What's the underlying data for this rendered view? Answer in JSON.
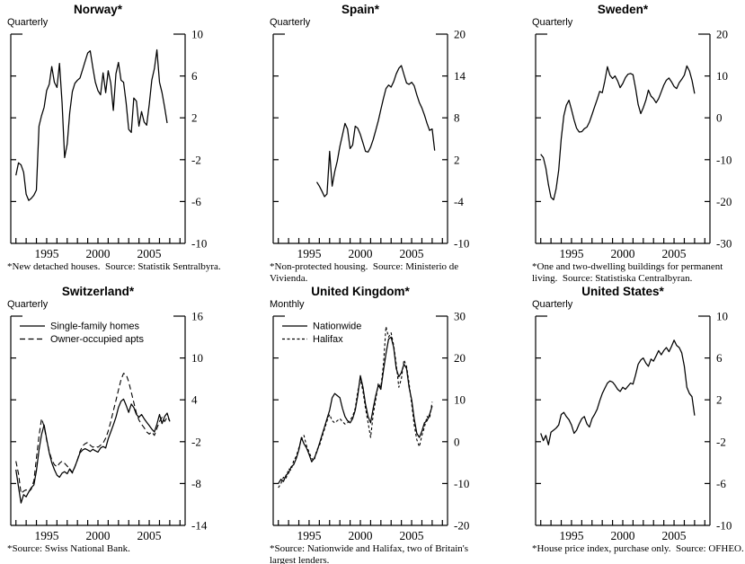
{
  "style": {
    "background": "#ffffff",
    "line_color": "#000000",
    "text_color": "#000000"
  },
  "chart_data": [
    {
      "type": "line",
      "title": "Norway*",
      "frequency_label": "Quarterly",
      "footnote": "*New detached houses.  Source: Statistik Sentralbyra.",
      "ylim": [
        -10,
        10
      ],
      "yticks": [
        10,
        6,
        2,
        -2,
        -6,
        -10
      ],
      "xlim": [
        1991.5,
        2008.5
      ],
      "year_ticks": [
        1992,
        2008
      ],
      "xtick_labels": [
        "1995",
        "2000",
        "2005"
      ],
      "legend": null,
      "series": [
        {
          "name": "New detached houses",
          "line_style": "solid",
          "x_start": 1992.0,
          "x_step": 0.25,
          "values": [
            -3.5,
            -2.3,
            -2.5,
            -3.2,
            -5.3,
            -5.9,
            -5.7,
            -5.4,
            -4.9,
            1.2,
            2.2,
            3.0,
            4.6,
            5.2,
            6.9,
            5.4,
            4.9,
            7.2,
            3.4,
            -1.8,
            -0.5,
            2.5,
            4.5,
            5.3,
            5.6,
            5.8,
            6.6,
            7.4,
            8.2,
            8.4,
            6.8,
            5.4,
            4.6,
            4.2,
            6.3,
            4.4,
            6.5,
            5.3,
            2.7,
            6.2,
            7.3,
            5.6,
            5.4,
            3.4,
            0.9,
            0.6,
            3.9,
            3.6,
            1.2,
            2.6,
            1.6,
            1.3,
            3.3,
            5.6,
            6.7,
            8.5,
            5.4,
            4.4,
            3.0,
            1.5
          ]
        }
      ]
    },
    {
      "type": "line",
      "title": "Spain*",
      "frequency_label": "Quarterly",
      "footnote": "*Non-protected housing.  Source: Ministerio de\nVivienda.",
      "ylim": [
        -10,
        20
      ],
      "yticks": [
        20,
        14,
        8,
        2,
        -4,
        -10
      ],
      "xlim": [
        1991.5,
        2008.5
      ],
      "year_ticks": [
        1992,
        2008
      ],
      "xtick_labels": [
        "1995",
        "2000",
        "2005"
      ],
      "legend": null,
      "series": [
        {
          "name": "Non-protected housing",
          "line_style": "solid",
          "x_start": 1995.75,
          "x_step": 0.25,
          "values": [
            -1.2,
            -1.8,
            -2.5,
            -3.3,
            -2.9,
            3.2,
            -1.8,
            0.3,
            1.8,
            3.9,
            5.5,
            7.2,
            6.4,
            3.6,
            4.1,
            6.8,
            6.5,
            5.6,
            4.4,
            3.2,
            3.1,
            3.8,
            4.9,
            6.2,
            7.6,
            9.2,
            10.8,
            12.2,
            12.7,
            12.4,
            13.2,
            14.3,
            15.1,
            15.5,
            14.2,
            13.0,
            12.8,
            13.1,
            12.6,
            11.3,
            10.2,
            9.4,
            8.4,
            7.2,
            6.2,
            6.4,
            3.3
          ]
        }
      ]
    },
    {
      "type": "line",
      "title": "Sweden*",
      "frequency_label": "Quarterly",
      "footnote": "*One and two-dwelling buildings for permanent\nliving.  Source: Statistiska Centralbyran.",
      "ylim": [
        -30,
        20
      ],
      "yticks": [
        20,
        10,
        0,
        -10,
        -20,
        -30
      ],
      "xlim": [
        1991.5,
        2008.5
      ],
      "year_ticks": [
        1992,
        2008
      ],
      "xtick_labels": [
        "1995",
        "2000",
        "2005"
      ],
      "legend": null,
      "series": [
        {
          "name": "One and two-dwelling buildings",
          "line_style": "solid",
          "x_start": 1992.0,
          "x_step": 0.25,
          "values": [
            -8.7,
            -9.5,
            -12.0,
            -16.0,
            -19.0,
            -19.6,
            -17.0,
            -12.5,
            -5.0,
            0.5,
            3.0,
            4.2,
            2.0,
            -0.5,
            -2.5,
            -3.4,
            -3.3,
            -2.6,
            -2.2,
            -1.0,
            0.8,
            2.6,
            4.4,
            6.3,
            6.0,
            8.8,
            12.2,
            10.2,
            9.4,
            10.0,
            8.8,
            7.2,
            8.2,
            9.6,
            10.4,
            10.6,
            10.3,
            7.0,
            3.2,
            1.0,
            2.4,
            4.2,
            6.6,
            5.2,
            4.6,
            3.6,
            4.6,
            6.2,
            7.8,
            9.0,
            9.5,
            8.6,
            7.5,
            7.0,
            8.4,
            9.2,
            10.2,
            12.4,
            11.2,
            9.0,
            5.8
          ]
        }
      ]
    },
    {
      "type": "line",
      "title": "Switzerland*",
      "frequency_label": "Quarterly",
      "footnote": "*Source: Swiss National Bank.",
      "ylim": [
        -14,
        16
      ],
      "yticks": [
        16,
        10,
        4,
        -2,
        -8,
        -14
      ],
      "xlim": [
        1991.5,
        2008.5
      ],
      "year_ticks": [
        1992,
        2008
      ],
      "xtick_labels": [
        "1995",
        "2000",
        "2005"
      ],
      "dash_pattern": "6,3.5",
      "legend": [
        {
          "label": "Single-family homes",
          "line_style": "solid"
        },
        {
          "label": "Owner-occupied apts",
          "line_style": "dashed"
        }
      ],
      "series": [
        {
          "name": "Single-family homes",
          "line_style": "solid",
          "x_start": 1992.0,
          "x_step": 0.25,
          "values": [
            -6.0,
            -8.5,
            -10.8,
            -9.6,
            -9.9,
            -9.2,
            -8.6,
            -8.2,
            -6.2,
            -3.2,
            -1.0,
            0.4,
            -1.6,
            -3.6,
            -5.0,
            -6.0,
            -6.8,
            -7.1,
            -6.5,
            -6.3,
            -6.6,
            -5.9,
            -6.4,
            -5.6,
            -4.6,
            -3.6,
            -3.2,
            -3.0,
            -3.2,
            -3.4,
            -3.1,
            -3.3,
            -3.5,
            -2.9,
            -2.7,
            -2.9,
            -1.6,
            -0.6,
            0.4,
            1.5,
            2.9,
            3.8,
            4.1,
            3.2,
            2.2,
            3.4,
            2.9,
            1.9,
            1.5,
            1.9,
            1.3,
            0.8,
            0.3,
            -0.2,
            -0.6,
            0.5,
            1.9,
            0.6,
            1.6,
            2.1,
            0.9
          ]
        },
        {
          "name": "Owner-occupied apts",
          "line_style": "dashed",
          "x_start": 1992.0,
          "x_step": 0.25,
          "values": [
            -4.8,
            -6.6,
            -9.4,
            -9.1,
            -8.9,
            -9.2,
            -8.8,
            -7.6,
            -4.4,
            -1.2,
            1.3,
            0.2,
            -1.8,
            -3.4,
            -4.6,
            -5.3,
            -5.6,
            -5.1,
            -4.8,
            -5.1,
            -5.5,
            -6.0,
            -6.5,
            -5.6,
            -4.6,
            -3.4,
            -2.6,
            -2.3,
            -2.1,
            -2.5,
            -2.8,
            -2.6,
            -2.8,
            -2.5,
            -2.2,
            -1.5,
            -0.5,
            0.9,
            2.4,
            3.9,
            5.4,
            6.9,
            7.8,
            7.6,
            6.6,
            5.1,
            3.6,
            2.1,
            1.1,
            0.5,
            0.0,
            -0.6,
            -0.9,
            -0.6,
            -1.1,
            -0.1,
            0.9,
            1.5,
            0.9,
            1.5,
            1.0
          ]
        }
      ]
    },
    {
      "type": "line",
      "title": "United Kingdom*",
      "frequency_label": "Monthly",
      "footnote": "*Source: Nationwide and Halifax, two of Britain's\nlargest lenders.",
      "ylim": [
        -20,
        30
      ],
      "yticks": [
        30,
        20,
        10,
        0,
        -10,
        -20
      ],
      "xlim": [
        1991.5,
        2008.5
      ],
      "year_ticks": [
        1992,
        2008
      ],
      "xtick_labels": [
        "1995",
        "2000",
        "2005"
      ],
      "dash_pattern": "3,2.5",
      "legend": [
        {
          "label": "Nationwide",
          "line_style": "solid"
        },
        {
          "label": "Halifax",
          "line_style": "dashed"
        }
      ],
      "series": [
        {
          "name": "Nationwide",
          "line_style": "solid",
          "x_start": 1992.0,
          "x_step": 0.25,
          "values": [
            -10.0,
            -9.0,
            -9.5,
            -8.0,
            -7.5,
            -6.0,
            -5.5,
            -4.0,
            -2.0,
            1.0,
            -0.5,
            -1.5,
            -3.0,
            -4.8,
            -4.0,
            -2.5,
            -0.5,
            1.5,
            3.5,
            5.5,
            7.5,
            10.5,
            11.5,
            11.0,
            10.5,
            8.0,
            6.0,
            5.0,
            4.5,
            5.5,
            7.5,
            11.0,
            15.8,
            13.0,
            9.0,
            6.0,
            4.5,
            8.0,
            11.0,
            13.5,
            12.5,
            17.0,
            21.0,
            24.5,
            25.0,
            22.5,
            17.5,
            15.5,
            16.5,
            18.5,
            17.5,
            13.0,
            10.0,
            5.5,
            2.0,
            1.0,
            2.5,
            4.5,
            5.0,
            6.5,
            8.5
          ]
        },
        {
          "name": "Halifax",
          "line_style": "dashed",
          "x_start": 1992.0,
          "x_step": 0.25,
          "values": [
            -11.0,
            -10.0,
            -8.5,
            -8.8,
            -6.5,
            -6.8,
            -4.5,
            -3.5,
            -1.5,
            0.5,
            1.5,
            -1.0,
            -2.5,
            -4.0,
            -4.5,
            -2.0,
            -1.0,
            1.0,
            3.0,
            5.0,
            6.5,
            5.0,
            4.5,
            5.0,
            5.5,
            4.8,
            4.2,
            4.5,
            5.2,
            6.0,
            8.0,
            12.0,
            15.0,
            12.0,
            8.0,
            4.5,
            1.0,
            6.5,
            10.0,
            14.0,
            13.0,
            18.5,
            27.5,
            25.0,
            26.0,
            23.0,
            18.5,
            13.0,
            15.0,
            19.5,
            18.0,
            14.0,
            9.0,
            4.0,
            0.5,
            -1.2,
            1.5,
            3.5,
            6.0,
            5.5,
            9.5
          ]
        }
      ]
    },
    {
      "type": "line",
      "title": "United States*",
      "frequency_label": "Quarterly",
      "footnote": "*House price index, purchase only.  Source: OFHEO.",
      "ylim": [
        -10,
        10
      ],
      "yticks": [
        10,
        6,
        2,
        -2,
        -6,
        -10
      ],
      "xlim": [
        1991.5,
        2008.5
      ],
      "year_ticks": [
        1992,
        2008
      ],
      "xtick_labels": [
        "1995",
        "2000",
        "2005"
      ],
      "legend": null,
      "series": [
        {
          "name": "House price index, purchase only",
          "line_style": "solid",
          "x_start": 1992.0,
          "x_step": 0.25,
          "values": [
            -1.2,
            -1.9,
            -1.4,
            -2.3,
            -1.1,
            -0.9,
            -0.7,
            -0.4,
            0.6,
            0.8,
            0.4,
            0.1,
            -0.4,
            -1.2,
            -0.9,
            -0.3,
            0.2,
            0.4,
            -0.3,
            -0.6,
            0.2,
            0.6,
            1.1,
            1.9,
            2.6,
            3.1,
            3.6,
            3.8,
            3.7,
            3.4,
            3.0,
            2.8,
            3.2,
            3.0,
            3.3,
            3.6,
            3.5,
            4.4,
            5.4,
            5.8,
            6.0,
            5.5,
            5.2,
            5.9,
            5.7,
            6.2,
            6.7,
            6.3,
            6.7,
            7.0,
            6.6,
            7.1,
            7.7,
            7.2,
            7.0,
            6.5,
            5.2,
            3.2,
            2.6,
            2.3,
            0.5
          ]
        }
      ]
    }
  ]
}
